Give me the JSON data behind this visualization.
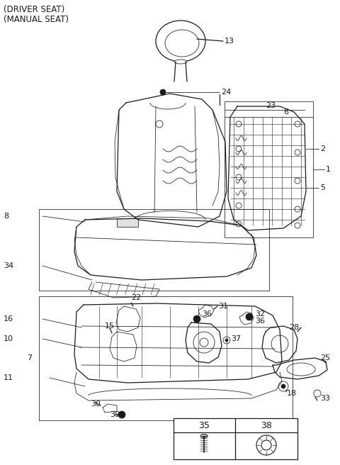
{
  "title_lines": [
    "(DRIVER SEAT)",
    "(MANUAL SEAT)"
  ],
  "bg_color": "#ffffff",
  "line_color": "#1a1a1a",
  "title_fontsize": 8.5,
  "label_fontsize": 8,
  "figsize": [
    4.8,
    6.56
  ],
  "dpi": 100
}
